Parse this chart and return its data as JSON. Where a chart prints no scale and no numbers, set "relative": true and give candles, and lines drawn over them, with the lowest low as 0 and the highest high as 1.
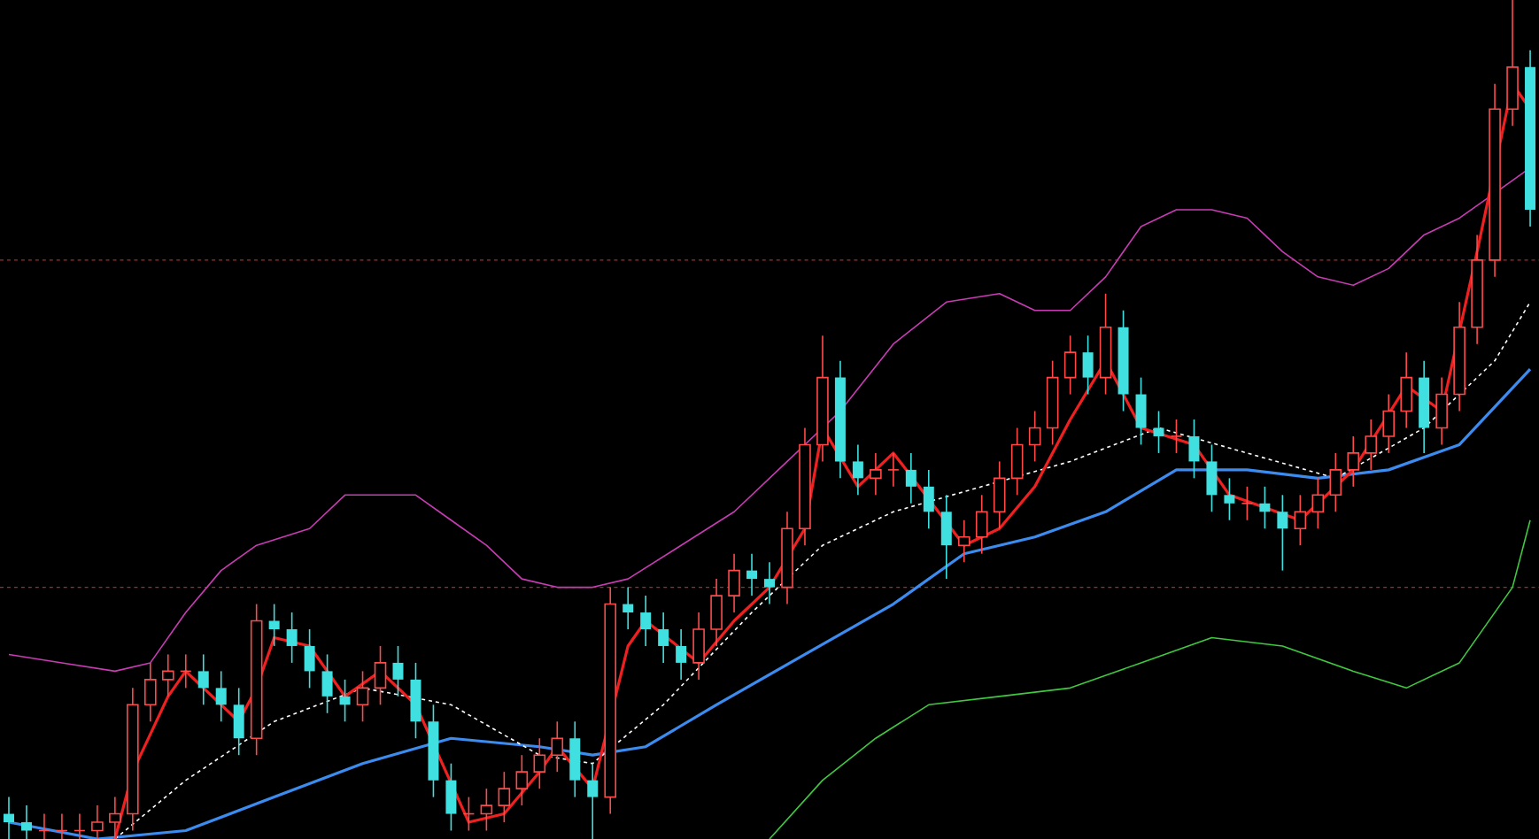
{
  "chart_data": {
    "type": "candlestick",
    "relative": true,
    "categories": [
      null,
      null,
      null,
      null,
      null,
      null,
      null,
      null,
      null,
      null,
      null,
      null,
      null,
      null,
      null,
      null,
      null,
      null,
      null,
      null,
      null,
      null,
      null,
      null,
      null,
      null,
      null,
      null,
      null,
      null,
      null,
      null,
      null,
      null,
      null,
      null,
      null,
      null,
      null,
      null,
      null,
      null,
      null,
      null,
      null,
      null,
      null,
      null,
      null,
      null,
      null,
      null,
      null,
      null,
      null,
      null,
      null,
      null,
      null,
      null,
      null,
      null,
      null,
      null,
      null,
      null,
      null,
      null,
      null,
      null,
      null,
      null,
      null,
      null,
      null,
      null,
      null,
      null,
      null,
      null,
      null,
      null,
      null,
      null,
      null,
      null,
      null
    ],
    "ohlc": [
      [
        0.03,
        0.05,
        0,
        0.02
      ],
      [
        0.02,
        0.04,
        0,
        0.01
      ],
      [
        0.01,
        0.03,
        0,
        0.01
      ],
      [
        0.01,
        0.03,
        0,
        0.01
      ],
      [
        0.01,
        0.03,
        0,
        0.01
      ],
      [
        0.01,
        0.04,
        0,
        0.02
      ],
      [
        0.02,
        0.05,
        0,
        0.03
      ],
      [
        0.03,
        0.18,
        0.01,
        0.16
      ],
      [
        0.16,
        0.21,
        0.14,
        0.19
      ],
      [
        0.19,
        0.22,
        0.17,
        0.2
      ],
      [
        0.2,
        0.22,
        0.18,
        0.2
      ],
      [
        0.2,
        0.22,
        0.16,
        0.18
      ],
      [
        0.18,
        0.2,
        0.14,
        0.16
      ],
      [
        0.16,
        0.18,
        0.1,
        0.12
      ],
      [
        0.12,
        0.28,
        0.1,
        0.26
      ],
      [
        0.26,
        0.28,
        0.23,
        0.25
      ],
      [
        0.25,
        0.27,
        0.21,
        0.23
      ],
      [
        0.23,
        0.25,
        0.18,
        0.2
      ],
      [
        0.2,
        0.22,
        0.15,
        0.17
      ],
      [
        0.17,
        0.19,
        0.14,
        0.16
      ],
      [
        0.16,
        0.2,
        0.14,
        0.18
      ],
      [
        0.18,
        0.23,
        0.16,
        0.21
      ],
      [
        0.21,
        0.23,
        0.17,
        0.19
      ],
      [
        0.19,
        0.21,
        0.12,
        0.14
      ],
      [
        0.14,
        0.16,
        0.05,
        0.07
      ],
      [
        0.07,
        0.09,
        0.01,
        0.03
      ],
      [
        0.03,
        0.05,
        0.01,
        0.03
      ],
      [
        0.03,
        0.06,
        0.01,
        0.04
      ],
      [
        0.04,
        0.08,
        0.02,
        0.06
      ],
      [
        0.06,
        0.1,
        0.04,
        0.08
      ],
      [
        0.08,
        0.12,
        0.06,
        0.1
      ],
      [
        0.1,
        0.14,
        0.08,
        0.12
      ],
      [
        0.12,
        0.14,
        0.05,
        0.07
      ],
      [
        0.07,
        0.09,
        0,
        0.05
      ],
      [
        0.05,
        0.3,
        0.03,
        0.28
      ],
      [
        0.28,
        0.3,
        0.25,
        0.27
      ],
      [
        0.27,
        0.29,
        0.23,
        0.25
      ],
      [
        0.25,
        0.27,
        0.21,
        0.23
      ],
      [
        0.23,
        0.25,
        0.19,
        0.21
      ],
      [
        0.21,
        0.27,
        0.19,
        0.25
      ],
      [
        0.25,
        0.31,
        0.23,
        0.29
      ],
      [
        0.29,
        0.34,
        0.27,
        0.32
      ],
      [
        0.32,
        0.34,
        0.29,
        0.31
      ],
      [
        0.31,
        0.33,
        0.28,
        0.3
      ],
      [
        0.3,
        0.39,
        0.28,
        0.37
      ],
      [
        0.37,
        0.49,
        0.35,
        0.47
      ],
      [
        0.47,
        0.6,
        0.45,
        0.55
      ],
      [
        0.55,
        0.57,
        0.43,
        0.45
      ],
      [
        0.45,
        0.47,
        0.41,
        0.43
      ],
      [
        0.43,
        0.46,
        0.41,
        0.44
      ],
      [
        0.44,
        0.46,
        0.42,
        0.44
      ],
      [
        0.44,
        0.46,
        0.4,
        0.42
      ],
      [
        0.42,
        0.44,
        0.37,
        0.39
      ],
      [
        0.39,
        0.41,
        0.31,
        0.35
      ],
      [
        0.35,
        0.38,
        0.33,
        0.36
      ],
      [
        0.36,
        0.41,
        0.34,
        0.39
      ],
      [
        0.39,
        0.45,
        0.37,
        0.43
      ],
      [
        0.43,
        0.49,
        0.41,
        0.47
      ],
      [
        0.47,
        0.51,
        0.45,
        0.49
      ],
      [
        0.49,
        0.57,
        0.47,
        0.55
      ],
      [
        0.55,
        0.6,
        0.53,
        0.58
      ],
      [
        0.58,
        0.6,
        0.53,
        0.55
      ],
      [
        0.55,
        0.65,
        0.53,
        0.61
      ],
      [
        0.61,
        0.63,
        0.51,
        0.53
      ],
      [
        0.53,
        0.55,
        0.47,
        0.49
      ],
      [
        0.49,
        0.51,
        0.46,
        0.48
      ],
      [
        0.48,
        0.5,
        0.46,
        0.48
      ],
      [
        0.48,
        0.5,
        0.43,
        0.45
      ],
      [
        0.45,
        0.47,
        0.39,
        0.41
      ],
      [
        0.41,
        0.43,
        0.38,
        0.4
      ],
      [
        0.4,
        0.42,
        0.38,
        0.4
      ],
      [
        0.4,
        0.42,
        0.37,
        0.39
      ],
      [
        0.39,
        0.41,
        0.32,
        0.37
      ],
      [
        0.37,
        0.41,
        0.35,
        0.39
      ],
      [
        0.39,
        0.43,
        0.37,
        0.41
      ],
      [
        0.41,
        0.46,
        0.39,
        0.44
      ],
      [
        0.44,
        0.48,
        0.42,
        0.46
      ],
      [
        0.46,
        0.5,
        0.44,
        0.48
      ],
      [
        0.48,
        0.53,
        0.46,
        0.51
      ],
      [
        0.51,
        0.58,
        0.49,
        0.55
      ],
      [
        0.55,
        0.57,
        0.46,
        0.49
      ],
      [
        0.49,
        0.55,
        0.47,
        0.53
      ],
      [
        0.53,
        0.64,
        0.51,
        0.61
      ],
      [
        0.61,
        0.72,
        0.59,
        0.69
      ],
      [
        0.69,
        0.9,
        0.67,
        0.87
      ],
      [
        0.87,
        1,
        0.85,
        0.92
      ],
      [
        0.92,
        0.94,
        0.73,
        0.75
      ]
    ],
    "colors": [
      "#40e0e0",
      "#40e0e0",
      "#ff4a4a",
      "#ff4a4a",
      "#ff4a4a",
      "#ff4a4a",
      "#ff4a4a",
      "#ff4a4a",
      "#ff4a4a",
      "#ff4a4a",
      "#ff4a4a",
      "#40e0e0",
      "#40e0e0",
      "#40e0e0",
      "#ff4a4a",
      "#40e0e0",
      "#40e0e0",
      "#40e0e0",
      "#40e0e0",
      "#40e0e0",
      "#ff4a4a",
      "#ff4a4a",
      "#40e0e0",
      "#40e0e0",
      "#40e0e0",
      "#40e0e0",
      "#ff4a4a",
      "#ff4a4a",
      "#ff4a4a",
      "#ff4a4a",
      "#ff4a4a",
      "#ff4a4a",
      "#40e0e0",
      "#40e0e0",
      "#ff4a4a",
      "#40e0e0",
      "#40e0e0",
      "#40e0e0",
      "#40e0e0",
      "#ff4a4a",
      "#ff4a4a",
      "#ff4a4a",
      "#40e0e0",
      "#40e0e0",
      "#ff4a4a",
      "#ff4a4a",
      "#ff4a4a",
      "#40e0e0",
      "#40e0e0",
      "#ff4a4a",
      "#ff4a4a",
      "#40e0e0",
      "#40e0e0",
      "#40e0e0",
      "#ff4a4a",
      "#ff4a4a",
      "#ff4a4a",
      "#ff4a4a",
      "#ff4a4a",
      "#ff4a4a",
      "#ff4a4a",
      "#40e0e0",
      "#ff4a4a",
      "#40e0e0",
      "#40e0e0",
      "#40e0e0",
      "#ff4a4a",
      "#40e0e0",
      "#40e0e0",
      "#40e0e0",
      "#ff4a4a",
      "#40e0e0",
      "#40e0e0",
      "#ff4a4a",
      "#ff4a4a",
      "#ff4a4a",
      "#ff4a4a",
      "#ff4a4a",
      "#ff4a4a",
      "#ff4a4a",
      "#40e0e0",
      "#ff4a4a",
      "#ff4a4a",
      "#ff4a4a",
      "#ff4a4a",
      "#ff4a4a",
      "#40e0e0"
    ],
    "series": [
      {
        "type": "line",
        "color": "#c83cb4",
        "line_style": "solid",
        "values": [
          0.22,
          null,
          null,
          0.21,
          null,
          null,
          0.2,
          null,
          0.21,
          null,
          0.27,
          null,
          0.32,
          null,
          0.35,
          null,
          null,
          0.37,
          null,
          0.41,
          null,
          0.41,
          null,
          0.41,
          null,
          0.38,
          null,
          0.35,
          null,
          0.31,
          null,
          0.3,
          null,
          0.3,
          null,
          0.31,
          null,
          null,
          0.35,
          null,
          null,
          0.39,
          null,
          null,
          0.45,
          null,
          null,
          0.51,
          null,
          null,
          0.59,
          null,
          null,
          0.64,
          null,
          null,
          0.65,
          null,
          0.63,
          null,
          0.63,
          null,
          0.67,
          null,
          0.73,
          null,
          0.75,
          null,
          0.75,
          null,
          0.74,
          null,
          0.7,
          null,
          0.67,
          null,
          0.66,
          null,
          0.68,
          null,
          0.72,
          null,
          0.74,
          null,
          0.77,
          null,
          0.8
        ]
      },
      {
        "type": "line",
        "color": "#40c840",
        "line_style": "solid",
        "values": [
          null,
          null,
          null,
          null,
          null,
          null,
          null,
          null,
          null,
          null,
          null,
          null,
          null,
          null,
          null,
          null,
          null,
          null,
          null,
          null,
          null,
          null,
          null,
          null,
          null,
          null,
          null,
          null,
          null,
          null,
          null,
          null,
          null,
          null,
          null,
          null,
          null,
          null,
          null,
          null,
          null,
          null,
          null,
          0,
          null,
          null,
          0.07,
          null,
          null,
          0.12,
          null,
          null,
          0.16,
          null,
          null,
          null,
          0.17,
          null,
          null,
          null,
          0.18,
          null,
          null,
          null,
          0.21,
          null,
          null,
          null,
          0.24,
          null,
          null,
          null,
          0.23,
          null,
          null,
          null,
          0.2,
          null,
          null,
          0.18,
          null,
          null,
          0.21,
          null,
          null,
          0.3,
          0.38
        ]
      },
      {
        "type": "line",
        "color": "#3c8cf0",
        "line_style": "solid",
        "values": [
          0.02,
          null,
          null,
          null,
          null,
          0,
          null,
          null,
          null,
          null,
          0.01,
          null,
          null,
          null,
          null,
          0.05,
          null,
          null,
          null,
          null,
          0.09,
          null,
          null,
          null,
          null,
          0.12,
          null,
          null,
          null,
          null,
          0.11,
          null,
          null,
          0.1,
          null,
          null,
          0.11,
          null,
          null,
          null,
          0.16,
          null,
          null,
          null,
          null,
          0.22,
          null,
          null,
          null,
          null,
          0.28,
          null,
          null,
          null,
          0.34,
          null,
          null,
          null,
          0.36,
          null,
          null,
          null,
          0.39,
          null,
          null,
          null,
          0.44,
          null,
          null,
          null,
          0.44,
          null,
          null,
          null,
          0.43,
          null,
          null,
          null,
          0.44,
          null,
          null,
          null,
          0.47,
          null,
          null,
          null,
          0.56
        ]
      },
      {
        "type": "line",
        "color": "#ffffff",
        "line_style": "dashed",
        "values": [
          null,
          null,
          null,
          null,
          null,
          null,
          0,
          null,
          null,
          null,
          0.07,
          null,
          null,
          null,
          null,
          0.14,
          null,
          null,
          null,
          null,
          0.18,
          null,
          null,
          null,
          null,
          0.16,
          null,
          null,
          null,
          null,
          0.1,
          null,
          null,
          0.09,
          null,
          null,
          null,
          0.16,
          null,
          null,
          null,
          null,
          0.27,
          null,
          null,
          null,
          0.35,
          null,
          null,
          null,
          0.39,
          null,
          null,
          null,
          null,
          0.42,
          null,
          null,
          null,
          null,
          0.45,
          null,
          null,
          null,
          null,
          0.49,
          null,
          null,
          null,
          null,
          0.46,
          null,
          null,
          null,
          null,
          0.43,
          null,
          null,
          null,
          null,
          0.49,
          null,
          null,
          null,
          0.57,
          null,
          0.64
        ]
      },
      {
        "type": "line",
        "color": "#f02020",
        "line_style": "solid",
        "values": [
          null,
          null,
          null,
          null,
          null,
          null,
          0,
          0.08,
          null,
          0.17,
          0.2,
          0.18,
          null,
          0.14,
          0.18,
          0.24,
          null,
          0.23,
          null,
          0.17,
          null,
          0.2,
          null,
          0.16,
          null,
          null,
          0.02,
          null,
          0.03,
          null,
          0.08,
          0.11,
          null,
          0.06,
          null,
          0.23,
          0.26,
          null,
          null,
          0.21,
          null,
          0.26,
          null,
          0.3,
          null,
          0.37,
          0.49,
          null,
          0.42,
          null,
          0.46,
          null,
          null,
          null,
          0.35,
          null,
          0.37,
          null,
          0.42,
          null,
          0.5,
          null,
          0.57,
          null,
          0.49,
          null,
          null,
          0.47,
          null,
          0.41,
          null,
          null,
          null,
          0.38,
          null,
          null,
          0.44,
          null,
          null,
          0.54,
          null,
          0.51,
          null,
          0.7,
          null,
          0.9,
          0.87
        ]
      }
    ],
    "ref_lines": [
      {
        "axis": "y",
        "value": 0.69,
        "color": "#a03030",
        "line_style": "dashed"
      },
      {
        "axis": "y",
        "value": 0.3,
        "color": "#a03030",
        "line_style": "dashed"
      }
    ]
  }
}
